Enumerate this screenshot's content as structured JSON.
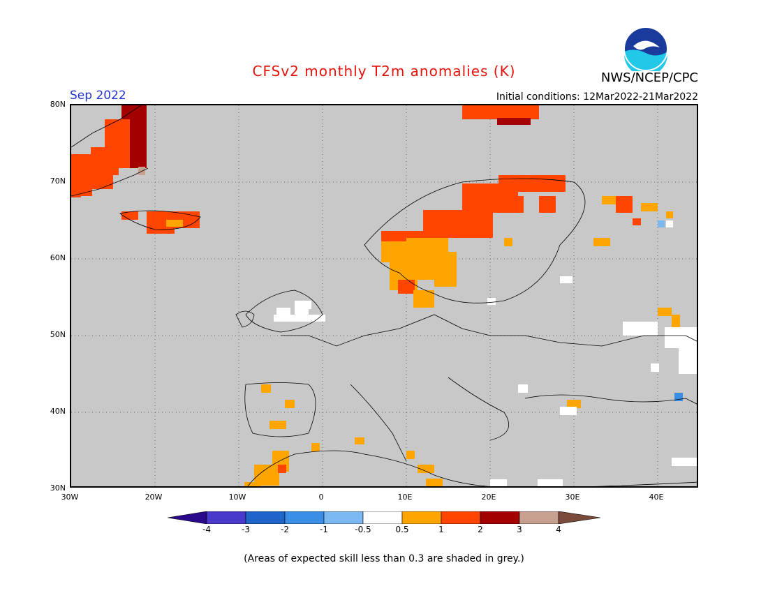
{
  "header": {
    "title": "CFSv2 monthly T2m anomalies (K)",
    "agency": "NWS/NCEP/CPC",
    "month": "Sep 2022",
    "initial_conditions": "Initial conditions: 12Mar2022-21Mar2022",
    "logo_text": "NOAA"
  },
  "map": {
    "region": "Europe",
    "lon_range": [
      -30,
      45
    ],
    "lat_range": [
      30,
      80
    ],
    "lat_labels": [
      "80N",
      "70N",
      "60N",
      "50N",
      "40N",
      "30N"
    ],
    "lon_labels": [
      "30W",
      "20W",
      "10W",
      "0",
      "10E",
      "20E",
      "30E",
      "40E"
    ],
    "gridline_style": "dotted",
    "background_color": "#c8c8c8"
  },
  "legend": {
    "tick_labels": [
      "-4",
      "-3",
      "-2",
      "-1",
      "-0.5",
      "0.5",
      "1",
      "2",
      "3",
      "4"
    ],
    "colors": [
      "#2a0a8a",
      "#4a3acb",
      "#1f65c9",
      "#3b8ee6",
      "#7cb8f2",
      "#ffffff",
      "#ffa500",
      "#ff4500",
      "#a30000",
      "#c8a090",
      "#7a4a3a"
    ]
  },
  "footnote": "(Areas of expected skill less than 0.3 are shaded in grey.)"
}
